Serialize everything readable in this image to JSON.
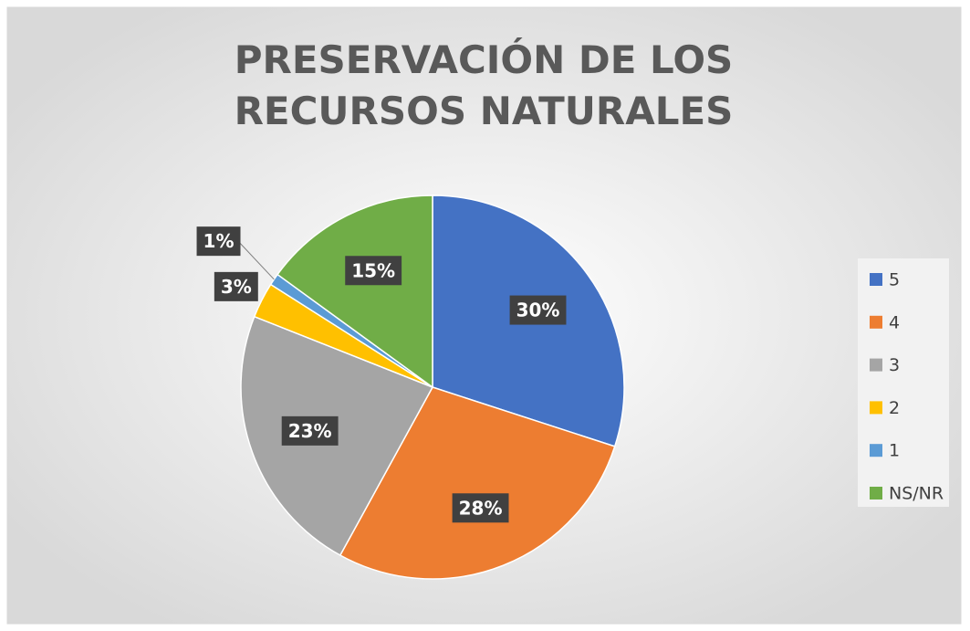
{
  "chart_data": {
    "type": "pie",
    "title": "PRESERVACIÓN DE LOS RECURSOS NATURALES",
    "categories": [
      "5",
      "4",
      "3",
      "2",
      "1",
      "NS/NR"
    ],
    "values": [
      30,
      28,
      23,
      3,
      1,
      15
    ],
    "value_labels": [
      "30%",
      "28%",
      "23%",
      "3%",
      "1%",
      "15%"
    ],
    "colors": [
      "#4472c4",
      "#ed7d31",
      "#a5a5a5",
      "#ffc000",
      "#5b9bd5",
      "#70ad47"
    ],
    "legend": "right"
  }
}
